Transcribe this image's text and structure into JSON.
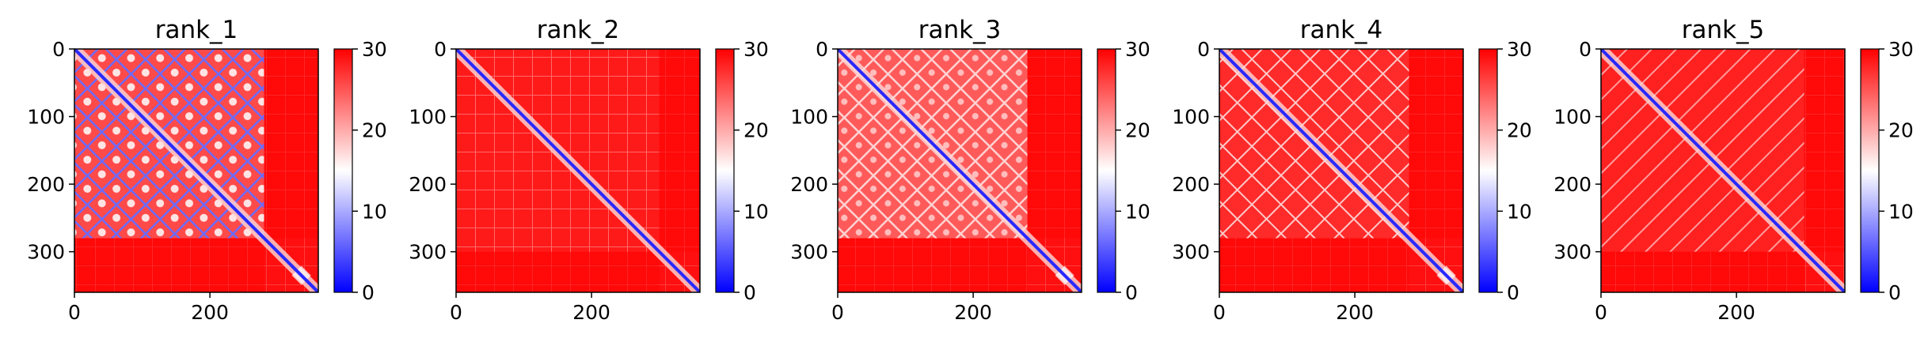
{
  "chart_data": [
    {
      "type": "heatmap",
      "title": "rank_1",
      "n": 360,
      "xticks": [
        0,
        200
      ],
      "yticks": [
        0,
        100,
        200,
        300
      ],
      "xlim": [
        0,
        360
      ],
      "ylim": [
        360,
        0
      ],
      "colorbar": {
        "min": 0,
        "max": 30,
        "ticks": [
          0,
          10,
          20,
          30
        ],
        "colors": [
          "#0000ff",
          "#ffffff",
          "#ff0000"
        ]
      },
      "structure": {
        "domain_end": 280,
        "pattern": "strong",
        "diagonal": "blue",
        "tail_bump": true
      }
    },
    {
      "type": "heatmap",
      "title": "rank_2",
      "n": 360,
      "xticks": [
        0,
        200
      ],
      "yticks": [
        0,
        100,
        200,
        300
      ],
      "xlim": [
        0,
        360
      ],
      "ylim": [
        360,
        0
      ],
      "colorbar": {
        "min": 0,
        "max": 30,
        "ticks": [
          0,
          10,
          20,
          30
        ],
        "colors": [
          "#0000ff",
          "#ffffff",
          "#ff0000"
        ]
      },
      "structure": {
        "domain_end": 300,
        "pattern": "faint",
        "diagonal": "blue",
        "tail_bump": false
      }
    },
    {
      "type": "heatmap",
      "title": "rank_3",
      "n": 360,
      "xticks": [
        0,
        200
      ],
      "yticks": [
        0,
        100,
        200,
        300
      ],
      "xlim": [
        0,
        360
      ],
      "ylim": [
        360,
        0
      ],
      "colorbar": {
        "min": 0,
        "max": 30,
        "ticks": [
          0,
          10,
          20,
          30
        ],
        "colors": [
          "#0000ff",
          "#ffffff",
          "#ff0000"
        ]
      },
      "structure": {
        "domain_end": 280,
        "pattern": "medium",
        "diagonal": "blue",
        "tail_bump": true
      }
    },
    {
      "type": "heatmap",
      "title": "rank_4",
      "n": 360,
      "xticks": [
        0,
        200
      ],
      "yticks": [
        0,
        100,
        200,
        300
      ],
      "xlim": [
        0,
        360
      ],
      "ylim": [
        360,
        0
      ],
      "colorbar": {
        "min": 0,
        "max": 30,
        "ticks": [
          0,
          10,
          20,
          30
        ],
        "colors": [
          "#0000ff",
          "#ffffff",
          "#ff0000"
        ]
      },
      "structure": {
        "domain_end": 280,
        "pattern": "light",
        "diagonal": "blue",
        "tail_bump": true
      }
    },
    {
      "type": "heatmap",
      "title": "rank_5",
      "n": 360,
      "xticks": [
        0,
        200
      ],
      "yticks": [
        0,
        100,
        200,
        300
      ],
      "xlim": [
        0,
        360
      ],
      "ylim": [
        360,
        0
      ],
      "colorbar": {
        "min": 0,
        "max": 30,
        "ticks": [
          0,
          10,
          20,
          30
        ],
        "colors": [
          "#0000ff",
          "#ffffff",
          "#ff0000"
        ]
      },
      "structure": {
        "domain_end": 300,
        "pattern": "stripes",
        "diagonal": "blue",
        "tail_bump": false
      }
    }
  ]
}
